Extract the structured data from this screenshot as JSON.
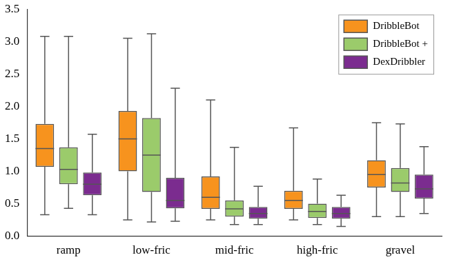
{
  "chart_data": {
    "type": "box",
    "categories": [
      "ramp",
      "low-fric",
      "mid-fric",
      "high-fric",
      "gravel"
    ],
    "series": [
      {
        "name": "DribbleBot",
        "color": "#f7931e",
        "values": [
          {
            "min": 0.33,
            "q1": 1.07,
            "median": 1.35,
            "q3": 1.73,
            "max": 3.08
          },
          {
            "min": 0.25,
            "q1": 1.0,
            "median": 1.5,
            "q3": 1.93,
            "max": 3.05
          },
          {
            "min": 0.25,
            "q1": 0.42,
            "median": 0.6,
            "q3": 0.92,
            "max": 2.1
          },
          {
            "min": 0.25,
            "q1": 0.42,
            "median": 0.55,
            "q3": 0.7,
            "max": 1.67
          },
          {
            "min": 0.3,
            "q1": 0.75,
            "median": 0.95,
            "q3": 1.17,
            "max": 1.75
          }
        ]
      },
      {
        "name": "DribbleBot +",
        "color": "#9bcb6b",
        "values": [
          {
            "min": 0.43,
            "q1": 0.8,
            "median": 1.03,
            "q3": 1.37,
            "max": 3.08
          },
          {
            "min": 0.22,
            "q1": 0.68,
            "median": 1.25,
            "q3": 1.82,
            "max": 3.12
          },
          {
            "min": 0.18,
            "q1": 0.3,
            "median": 0.42,
            "q3": 0.55,
            "max": 1.37
          },
          {
            "min": 0.18,
            "q1": 0.28,
            "median": 0.38,
            "q3": 0.5,
            "max": 0.88
          },
          {
            "min": 0.3,
            "q1": 0.68,
            "median": 0.82,
            "q3": 1.05,
            "max": 1.73
          }
        ]
      },
      {
        "name": "DexDribbler",
        "color": "#7b2c8f",
        "values": [
          {
            "min": 0.33,
            "q1": 0.63,
            "median": 0.8,
            "q3": 0.98,
            "max": 1.57
          },
          {
            "min": 0.23,
            "q1": 0.43,
            "median": 0.55,
            "q3": 0.9,
            "max": 2.28
          },
          {
            "min": 0.18,
            "q1": 0.27,
            "median": 0.35,
            "q3": 0.45,
            "max": 0.77
          },
          {
            "min": 0.15,
            "q1": 0.27,
            "median": 0.35,
            "q3": 0.45,
            "max": 0.63
          },
          {
            "min": 0.35,
            "q1": 0.58,
            "median": 0.73,
            "q3": 0.95,
            "max": 1.38
          }
        ]
      }
    ],
    "ylim": [
      0,
      3.5
    ],
    "yticks": [
      {
        "value": 0,
        "label": "0.0"
      },
      0.5,
      {
        "value": 1,
        "label": "1.0"
      },
      1.5,
      {
        "value": 2,
        "label": "2.0"
      },
      2.5,
      {
        "value": 3,
        "label": "3.0"
      },
      3.5
    ],
    "grid": false,
    "legend": "upper right"
  }
}
